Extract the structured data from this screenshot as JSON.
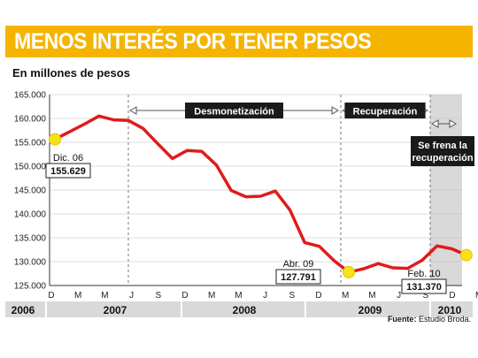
{
  "title": "MENOS INTERÉS POR TENER PESOS",
  "subtitle": "En millones de pesos",
  "source_label": "Fuente:",
  "source_value": "Estudio Broda.",
  "colors": {
    "title_bg": "#f5b400",
    "line": "#e01b1b",
    "marker": "#f7e21a",
    "shade": "#d9d9d9",
    "year_bg": "#d9d9d9"
  },
  "chart_data": {
    "type": "line",
    "y_ticks": [
      "165.000",
      "160.000",
      "155.000",
      "150.000",
      "145.000",
      "140.000",
      "135.000",
      "130.000",
      "125.000"
    ],
    "y_tick_values": [
      165000,
      160000,
      155000,
      150000,
      145000,
      140000,
      135000,
      130000,
      125000
    ],
    "ylim": [
      125000,
      165000
    ],
    "month_ticks": [
      "D",
      "M",
      "M",
      "J",
      "S",
      "D",
      "M",
      "M",
      "J",
      "S",
      "D",
      "M",
      "M",
      "J",
      "S",
      "D",
      "M"
    ],
    "years": [
      "2006",
      "2007",
      "2008",
      "2009",
      "2010"
    ],
    "series": [
      {
        "values": [
          155629,
          157200,
          158800,
          160500,
          159700,
          159600,
          157900,
          154700,
          151600,
          153300,
          153100,
          150200,
          144900,
          143600,
          143700,
          144800,
          140800,
          134000,
          133200,
          130200,
          127791,
          128500,
          129600,
          128700,
          128600,
          130300,
          133300,
          132700,
          131370
        ]
      }
    ],
    "annotations": [
      {
        "label": "Dic. 06",
        "value": "155.629"
      },
      {
        "label": "Abr. 09",
        "value": "127.791"
      },
      {
        "label": "Feb. 10",
        "value": "131.370"
      }
    ],
    "periods": [
      {
        "label": "Desmonetización"
      },
      {
        "label": "Recuperación"
      }
    ],
    "shaded_label_1": "Se frena la",
    "shaded_label_2": "recuperación",
    "grid": true
  }
}
